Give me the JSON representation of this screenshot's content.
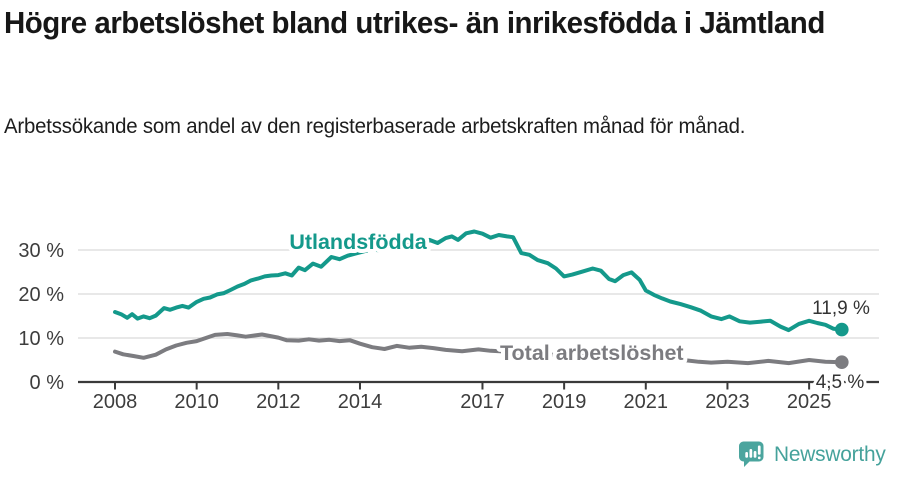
{
  "chart_data": {
    "type": "line",
    "title": "Högre arbetslöshet bland utrikes- än inrikesfödda i Jämtland",
    "subtitle": "Arbetssökande som andel av den registerbaserade arbetskraften månad för månad.",
    "unit": "%",
    "grid": true,
    "legend_position": "inline-labels",
    "x_axis": {
      "range": [
        2007.1,
        2026.6
      ],
      "ticks": [
        {
          "value": 2008,
          "label": "2008"
        },
        {
          "value": 2010,
          "label": "2010"
        },
        {
          "value": 2012,
          "label": "2012"
        },
        {
          "value": 2014,
          "label": "2014"
        },
        {
          "value": 2017,
          "label": "2017"
        },
        {
          "value": 2019,
          "label": "2019"
        },
        {
          "value": 2021,
          "label": "2021"
        },
        {
          "value": 2023,
          "label": "2023"
        },
        {
          "value": 2025,
          "label": "2025"
        }
      ]
    },
    "y_axis": {
      "range": [
        0,
        36
      ],
      "unit": "%",
      "ticks": [
        {
          "value": 0,
          "label": "0 %"
        },
        {
          "value": 10,
          "label": "10 %"
        },
        {
          "value": 20,
          "label": "20 %"
        },
        {
          "value": 30,
          "label": "30 %"
        }
      ]
    },
    "colors": {
      "utlandsfodda": "#14998b",
      "total": "#7c7c80",
      "gridline": "#d9d9d9",
      "axis": "#3a3a3a",
      "value_label": "#333333"
    },
    "series": [
      {
        "id": "utlandsfodda",
        "name": "Utlandsfödda",
        "color": "#14998b",
        "end_label": "11,9 %",
        "end_value": 11.9,
        "points": [
          [
            2008.0,
            15.9
          ],
          [
            2008.15,
            15.4
          ],
          [
            2008.3,
            14.6
          ],
          [
            2008.42,
            15.4
          ],
          [
            2008.55,
            14.4
          ],
          [
            2008.7,
            14.9
          ],
          [
            2008.85,
            14.5
          ],
          [
            2009.0,
            15.1
          ],
          [
            2009.2,
            16.8
          ],
          [
            2009.35,
            16.4
          ],
          [
            2009.5,
            16.9
          ],
          [
            2009.65,
            17.3
          ],
          [
            2009.8,
            16.9
          ],
          [
            2010.0,
            18.2
          ],
          [
            2010.17,
            18.9
          ],
          [
            2010.33,
            19.2
          ],
          [
            2010.5,
            19.9
          ],
          [
            2010.67,
            20.2
          ],
          [
            2010.83,
            20.9
          ],
          [
            2011.0,
            21.7
          ],
          [
            2011.17,
            22.3
          ],
          [
            2011.33,
            23.1
          ],
          [
            2011.5,
            23.5
          ],
          [
            2011.67,
            24.0
          ],
          [
            2011.83,
            24.2
          ],
          [
            2012.0,
            24.3
          ],
          [
            2012.17,
            24.7
          ],
          [
            2012.33,
            24.2
          ],
          [
            2012.5,
            26.0
          ],
          [
            2012.65,
            25.4
          ],
          [
            2012.85,
            26.9
          ],
          [
            2013.05,
            26.2
          ],
          [
            2013.3,
            28.4
          ],
          [
            2013.5,
            27.9
          ],
          [
            2013.7,
            28.7
          ],
          [
            2013.9,
            29.2
          ],
          [
            2014.1,
            29.7
          ],
          [
            2014.3,
            30.1
          ],
          [
            2014.5,
            29.9
          ],
          [
            2014.7,
            30.5
          ],
          [
            2014.9,
            30.9
          ],
          [
            2015.1,
            31.2
          ],
          [
            2015.3,
            30.9
          ],
          [
            2015.5,
            31.5
          ],
          [
            2015.7,
            32.3
          ],
          [
            2015.9,
            31.6
          ],
          [
            2016.1,
            32.7
          ],
          [
            2016.25,
            33.1
          ],
          [
            2016.4,
            32.3
          ],
          [
            2016.6,
            33.8
          ],
          [
            2016.8,
            34.2
          ],
          [
            2017.0,
            33.7
          ],
          [
            2017.2,
            32.8
          ],
          [
            2017.4,
            33.4
          ],
          [
            2017.6,
            33.1
          ],
          [
            2017.75,
            32.9
          ],
          [
            2017.95,
            29.3
          ],
          [
            2018.15,
            28.9
          ],
          [
            2018.35,
            27.7
          ],
          [
            2018.6,
            27.0
          ],
          [
            2018.8,
            25.8
          ],
          [
            2019.0,
            24.0
          ],
          [
            2019.2,
            24.4
          ],
          [
            2019.45,
            25.1
          ],
          [
            2019.7,
            25.8
          ],
          [
            2019.9,
            25.3
          ],
          [
            2020.1,
            23.4
          ],
          [
            2020.25,
            22.9
          ],
          [
            2020.45,
            24.3
          ],
          [
            2020.65,
            24.9
          ],
          [
            2020.85,
            23.2
          ],
          [
            2021.0,
            20.8
          ],
          [
            2021.2,
            19.8
          ],
          [
            2021.4,
            19.0
          ],
          [
            2021.6,
            18.3
          ],
          [
            2021.85,
            17.7
          ],
          [
            2022.1,
            17.0
          ],
          [
            2022.35,
            16.2
          ],
          [
            2022.6,
            14.9
          ],
          [
            2022.85,
            14.3
          ],
          [
            2023.05,
            14.9
          ],
          [
            2023.3,
            13.8
          ],
          [
            2023.55,
            13.5
          ],
          [
            2023.8,
            13.7
          ],
          [
            2024.05,
            13.9
          ],
          [
            2024.3,
            12.6
          ],
          [
            2024.5,
            11.8
          ],
          [
            2024.75,
            13.2
          ],
          [
            2025.0,
            13.9
          ],
          [
            2025.2,
            13.4
          ],
          [
            2025.4,
            13.0
          ],
          [
            2025.6,
            12.1
          ],
          [
            2025.8,
            11.9
          ]
        ]
      },
      {
        "id": "total",
        "name": "Total arbetslöshet",
        "color": "#7c7c80",
        "end_label": "4,5 %",
        "end_value": 4.5,
        "points": [
          [
            2008.0,
            6.9
          ],
          [
            2008.2,
            6.3
          ],
          [
            2008.45,
            5.9
          ],
          [
            2008.7,
            5.5
          ],
          [
            2009.0,
            6.2
          ],
          [
            2009.25,
            7.4
          ],
          [
            2009.5,
            8.3
          ],
          [
            2009.75,
            8.9
          ],
          [
            2010.0,
            9.3
          ],
          [
            2010.25,
            10.1
          ],
          [
            2010.45,
            10.7
          ],
          [
            2010.75,
            10.9
          ],
          [
            2011.0,
            10.6
          ],
          [
            2011.2,
            10.3
          ],
          [
            2011.6,
            10.8
          ],
          [
            2012.0,
            10.1
          ],
          [
            2012.2,
            9.5
          ],
          [
            2012.5,
            9.4
          ],
          [
            2012.75,
            9.7
          ],
          [
            2013.0,
            9.4
          ],
          [
            2013.25,
            9.6
          ],
          [
            2013.5,
            9.3
          ],
          [
            2013.75,
            9.5
          ],
          [
            2014.0,
            8.7
          ],
          [
            2014.3,
            7.9
          ],
          [
            2014.6,
            7.5
          ],
          [
            2014.9,
            8.2
          ],
          [
            2015.2,
            7.8
          ],
          [
            2015.5,
            8.0
          ],
          [
            2015.8,
            7.7
          ],
          [
            2016.1,
            7.3
          ],
          [
            2016.5,
            7.0
          ],
          [
            2016.9,
            7.4
          ],
          [
            2017.2,
            7.1
          ],
          [
            2017.6,
            6.9
          ],
          [
            2018.0,
            6.6
          ],
          [
            2018.5,
            6.3
          ],
          [
            2019.0,
            6.1
          ],
          [
            2019.5,
            6.2
          ],
          [
            2020.0,
            7.3
          ],
          [
            2020.5,
            7.0
          ],
          [
            2021.0,
            6.3
          ],
          [
            2021.5,
            5.6
          ],
          [
            2022.0,
            4.9
          ],
          [
            2022.3,
            4.6
          ],
          [
            2022.6,
            4.4
          ],
          [
            2023.0,
            4.6
          ],
          [
            2023.5,
            4.3
          ],
          [
            2024.0,
            4.8
          ],
          [
            2024.5,
            4.3
          ],
          [
            2025.0,
            5.0
          ],
          [
            2025.4,
            4.6
          ],
          [
            2025.8,
            4.5
          ]
        ]
      }
    ]
  },
  "footer": {
    "brand": "Newsworthy"
  }
}
